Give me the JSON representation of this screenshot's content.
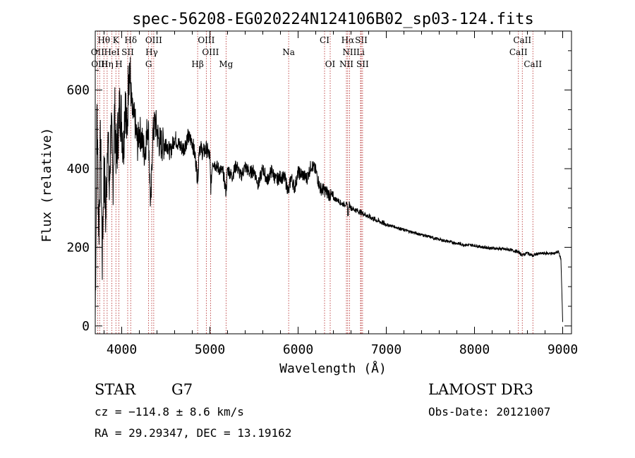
{
  "chart_data": {
    "type": "line",
    "title": "spec-56208-EG020224N124106B02_sp03-124.fits",
    "xlabel": "Wavelength (Å)",
    "ylabel": "Flux (relative)",
    "xlim": [
      3700,
      9100
    ],
    "ylim": [
      -20,
      750
    ],
    "xticks": [
      4000,
      5000,
      6000,
      7000,
      8000,
      9000
    ],
    "yticks": [
      0,
      200,
      400,
      600
    ],
    "series": [
      {
        "name": "flux",
        "x": [
          3700,
          3720,
          3740,
          3760,
          3780,
          3800,
          3820,
          3840,
          3860,
          3880,
          3900,
          3920,
          3940,
          3960,
          3980,
          4000,
          4020,
          4040,
          4060,
          4080,
          4100,
          4120,
          4150,
          4180,
          4200,
          4230,
          4260,
          4300,
          4330,
          4350,
          4380,
          4420,
          4460,
          4500,
          4550,
          4600,
          4650,
          4700,
          4750,
          4800,
          4840,
          4861,
          4880,
          4920,
          4960,
          5000,
          5010,
          5030,
          5060,
          5100,
          5150,
          5183,
          5200,
          5250,
          5300,
          5350,
          5400,
          5450,
          5500,
          5550,
          5600,
          5650,
          5700,
          5750,
          5800,
          5850,
          5893,
          5920,
          5960,
          6000,
          6050,
          6100,
          6150,
          6200,
          6250,
          6300,
          6350,
          6400,
          6450,
          6500,
          6540,
          6560,
          6563,
          6580,
          6600,
          6650,
          6700,
          6750,
          6800,
          6900,
          7000,
          7100,
          7200,
          7300,
          7400,
          7500,
          7600,
          7700,
          7800,
          7900,
          8000,
          8100,
          8200,
          8300,
          8400,
          8498,
          8542,
          8600,
          8662,
          8700,
          8800,
          8900,
          8950,
          8980,
          9000
        ],
        "values": [
          20,
          550,
          230,
          480,
          170,
          420,
          260,
          510,
          330,
          520,
          360,
          550,
          420,
          500,
          560,
          520,
          450,
          600,
          470,
          680,
          610,
          540,
          520,
          460,
          500,
          470,
          440,
          520,
          290,
          480,
          520,
          470,
          460,
          470,
          440,
          480,
          460,
          450,
          480,
          470,
          420,
          370,
          460,
          440,
          450,
          430,
          350,
          420,
          410,
          400,
          390,
          340,
          400,
          380,
          410,
          380,
          405,
          390,
          395,
          360,
          400,
          370,
          395,
          370,
          380,
          375,
          340,
          380,
          350,
          390,
          385,
          375,
          410,
          395,
          350,
          345,
          335,
          325,
          320,
          310,
          310,
          305,
          275,
          310,
          300,
          295,
          290,
          285,
          278,
          268,
          258,
          252,
          244,
          238,
          232,
          226,
          220,
          215,
          210,
          206,
          205,
          200,
          198,
          196,
          194,
          188,
          180,
          186,
          178,
          183,
          185,
          184,
          190,
          170,
          10
        ]
      }
    ],
    "spectral_lines": [
      {
        "label": "Hθ",
        "wavelength": 3798,
        "row": 0
      },
      {
        "label": "K",
        "wavelength": 3934,
        "row": 0
      },
      {
        "label": "Hδ",
        "wavelength": 4102,
        "row": 0
      },
      {
        "label": "OIII",
        "wavelength": 4363,
        "row": 0
      },
      {
        "label": "OIII",
        "wavelength": 4959,
        "row": 0
      },
      {
        "label": "CI",
        "wavelength": 6300,
        "row": 0
      },
      {
        "label": "Hα",
        "wavelength": 6563,
        "row": 0
      },
      {
        "label": "SII",
        "wavelength": 6716,
        "row": 0
      },
      {
        "label": "CaII",
        "wavelength": 8542,
        "row": 0
      },
      {
        "label": "OII",
        "wavelength": 3727,
        "row": 1
      },
      {
        "label": "HeI",
        "wavelength": 3889,
        "row": 1
      },
      {
        "label": "SII",
        "wavelength": 4068,
        "row": 1
      },
      {
        "label": "Hγ",
        "wavelength": 4340,
        "row": 1
      },
      {
        "label": "OIII",
        "wavelength": 5007,
        "row": 1
      },
      {
        "label": "Na",
        "wavelength": 5893,
        "row": 1
      },
      {
        "label": "NII",
        "wavelength": 6583,
        "row": 1
      },
      {
        "label": "Li",
        "wavelength": 6708,
        "row": 1
      },
      {
        "label": "CaII",
        "wavelength": 8498,
        "row": 1
      },
      {
        "label": "OIII",
        "wavelength": 3750,
        "row": 2
      },
      {
        "label": "Hη",
        "wavelength": 3835,
        "row": 2
      },
      {
        "label": "H",
        "wavelength": 3968,
        "row": 2
      },
      {
        "label": "G",
        "wavelength": 4305,
        "row": 2
      },
      {
        "label": "Hβ",
        "wavelength": 4861,
        "row": 2
      },
      {
        "label": "Mg",
        "wavelength": 5183,
        "row": 2
      },
      {
        "label": "OI",
        "wavelength": 6364,
        "row": 2
      },
      {
        "label": "NII",
        "wavelength": 6548,
        "row": 2
      },
      {
        "label": "SII",
        "wavelength": 6731,
        "row": 2
      },
      {
        "label": "CaII",
        "wavelength": 8662,
        "row": 2
      }
    ]
  },
  "info": {
    "object_class": "STAR",
    "subclass": "G7",
    "survey": "LAMOST DR3",
    "cz": "cz = −114.8 ± 8.6 km/s",
    "obs_date": "Obs-Date: 20121007",
    "coords": "RA =  29.29347, DEC =  13.19162"
  },
  "colors": {
    "axis": "#000000",
    "spectrum": "#000000",
    "line_marker": "#b22222"
  }
}
